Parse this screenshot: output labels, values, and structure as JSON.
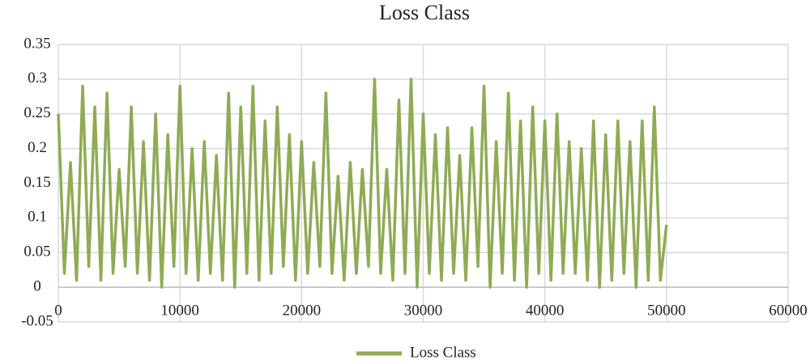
{
  "chart_data": {
    "type": "line",
    "title": "Loss Class",
    "x": [
      0,
      500,
      1000,
      1500,
      2000,
      2500,
      3000,
      3500,
      4000,
      4500,
      5000,
      5500,
      6000,
      6500,
      7000,
      7500,
      8000,
      8500,
      9000,
      9500,
      10000,
      10500,
      11000,
      11500,
      12000,
      12500,
      13000,
      13500,
      14000,
      14500,
      15000,
      15500,
      16000,
      16500,
      17000,
      17500,
      18000,
      18500,
      19000,
      19500,
      20000,
      20500,
      21000,
      21500,
      22000,
      22500,
      23000,
      23500,
      24000,
      24500,
      25000,
      25500,
      26000,
      26500,
      27000,
      27500,
      28000,
      28500,
      29000,
      29500,
      30000,
      30500,
      31000,
      31500,
      32000,
      32500,
      33000,
      33500,
      34000,
      34500,
      35000,
      35500,
      36000,
      36500,
      37000,
      37500,
      38000,
      38500,
      39000,
      39500,
      40000,
      40500,
      41000,
      41500,
      42000,
      42500,
      43000,
      43500,
      44000,
      44500,
      45000,
      45500,
      46000,
      46500,
      47000,
      47500,
      48000,
      48500,
      49000,
      49500,
      50000
    ],
    "series": [
      {
        "name": "Loss Class",
        "color": "#8fab56",
        "values": [
          0.25,
          0.02,
          0.18,
          0.01,
          0.29,
          0.03,
          0.26,
          0.01,
          0.28,
          0.02,
          0.17,
          0.03,
          0.26,
          0.02,
          0.21,
          0.01,
          0.25,
          0.0,
          0.22,
          0.03,
          0.29,
          0.02,
          0.2,
          0.01,
          0.21,
          0.02,
          0.19,
          0.01,
          0.28,
          0.0,
          0.26,
          0.02,
          0.29,
          0.01,
          0.24,
          0.02,
          0.26,
          0.03,
          0.22,
          0.01,
          0.21,
          0.02,
          0.18,
          0.03,
          0.28,
          0.02,
          0.16,
          0.01,
          0.18,
          0.02,
          0.17,
          0.03,
          0.3,
          0.02,
          0.17,
          0.01,
          0.27,
          0.02,
          0.3,
          0.0,
          0.25,
          0.02,
          0.22,
          0.01,
          0.23,
          0.02,
          0.19,
          0.01,
          0.23,
          0.03,
          0.29,
          0.0,
          0.21,
          0.02,
          0.28,
          0.01,
          0.24,
          0.0,
          0.26,
          0.02,
          0.24,
          0.01,
          0.25,
          0.02,
          0.21,
          0.02,
          0.2,
          0.01,
          0.24,
          0.0,
          0.22,
          0.01,
          0.24,
          0.02,
          0.21,
          0.0,
          0.24,
          0.01,
          0.26,
          0.01,
          0.09
        ]
      }
    ],
    "xlim": [
      0,
      60000
    ],
    "xticks": [
      0,
      10000,
      20000,
      30000,
      40000,
      50000,
      60000
    ],
    "ylim": [
      -0.05,
      0.35
    ],
    "yticks": [
      -0.05,
      0,
      0.05,
      0.1,
      0.15,
      0.2,
      0.25,
      0.3,
      0.35
    ],
    "grid": true,
    "legend": "bottom"
  }
}
